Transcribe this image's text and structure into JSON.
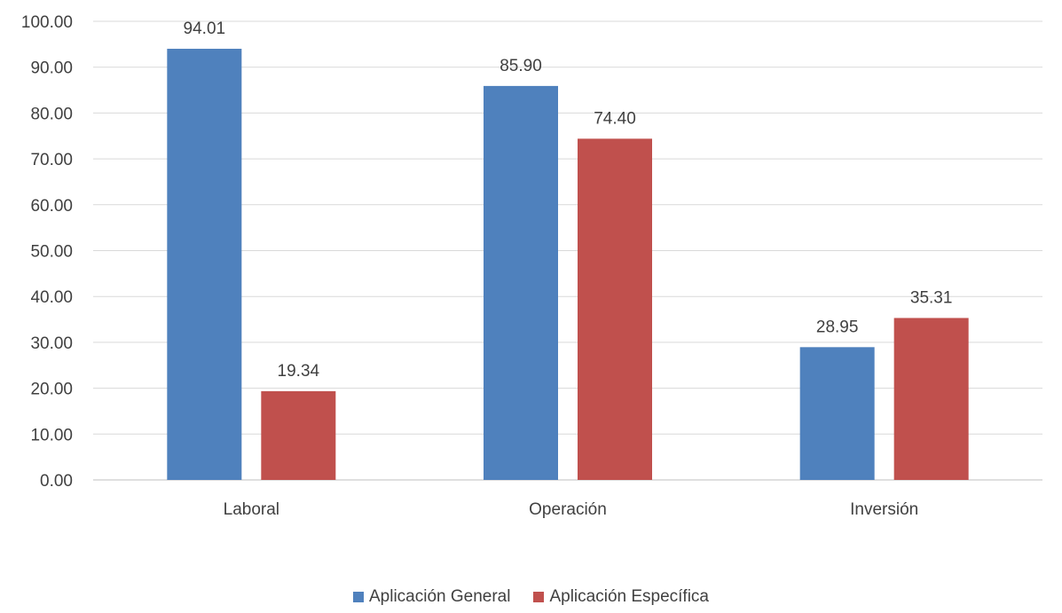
{
  "chart_data": {
    "type": "bar",
    "categories": [
      "Laboral",
      "Operación",
      "Inversión"
    ],
    "series": [
      {
        "name": "Aplicación General",
        "values": [
          94.01,
          85.9,
          28.95
        ],
        "color": "#4f81bd"
      },
      {
        "name": "Aplicación Específica",
        "values": [
          19.34,
          74.4,
          35.31
        ],
        "color": "#c0504d"
      }
    ],
    "y_ticks": [
      "0.00",
      "10.00",
      "20.00",
      "30.00",
      "40.00",
      "50.00",
      "60.00",
      "70.00",
      "80.00",
      "90.00",
      "100.00"
    ],
    "ylim": [
      0,
      100
    ],
    "grid": true,
    "legend_position": "bottom",
    "title": "",
    "xlabel": "",
    "ylabel": ""
  }
}
